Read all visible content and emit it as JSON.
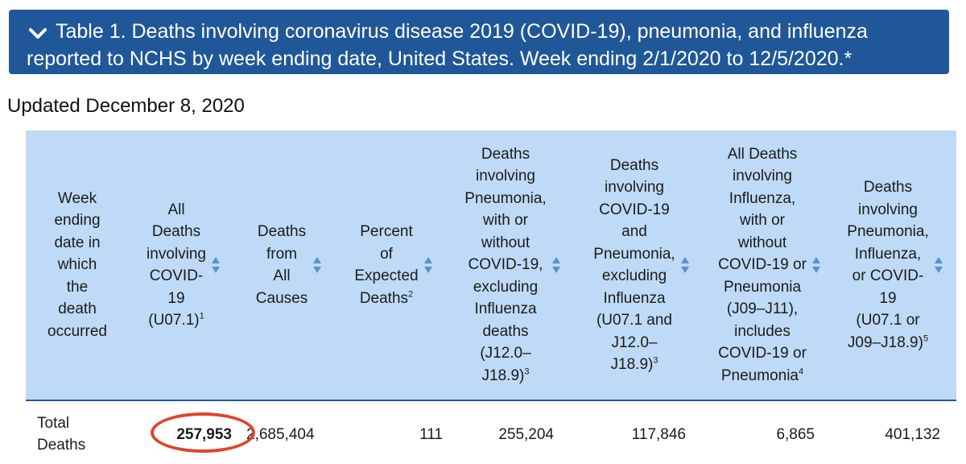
{
  "header": {
    "title": "Table 1. Deaths involving coronavirus disease 2019 (COVID-19), pneumonia, and influenza reported to NCHS by week ending date, United States. Week ending 2/1/2020 to 12/5/2020.*",
    "toggle_icon": "chevron-down-icon"
  },
  "updated": "Updated December 8, 2020",
  "table": {
    "columns": [
      {
        "lines": [
          "Week",
          "ending",
          "date in",
          "which",
          "the",
          "death",
          "occurred"
        ],
        "sup": "",
        "sortable": false
      },
      {
        "lines": [
          "All",
          "Deaths",
          "involving",
          "COVID-",
          "19",
          "(U07.1)"
        ],
        "sup": "1",
        "sortable": true
      },
      {
        "lines": [
          "Deaths",
          "from",
          "All",
          "Causes"
        ],
        "sup": "",
        "sortable": true
      },
      {
        "lines": [
          "Percent",
          "of",
          "Expected",
          "Deaths"
        ],
        "sup": "2",
        "sortable": true
      },
      {
        "lines": [
          "Deaths",
          "involving",
          "Pneumonia,",
          "with or",
          "without",
          "COVID-19,",
          "excluding",
          "Influenza",
          "deaths",
          "(J12.0–",
          "J18.9)"
        ],
        "sup": "3",
        "sortable": true
      },
      {
        "lines": [
          "Deaths",
          "involving",
          "COVID-19",
          "and",
          "Pneumonia,",
          "excluding",
          "Influenza",
          "(U07.1 and",
          "J12.0–",
          "J18.9)"
        ],
        "sup": "3",
        "sortable": true
      },
      {
        "lines": [
          "All Deaths",
          "involving",
          "Influenza,",
          "with or",
          "without",
          "COVID-19 or",
          "Pneumonia",
          "(J09–J11),",
          "includes",
          "COVID-19 or",
          "Pneumonia"
        ],
        "sup": "4",
        "sortable": true
      },
      {
        "lines": [
          "Deaths",
          "involving",
          "Pneumonia,",
          "Influenza,",
          "or COVID-",
          "19",
          "(U07.1 or",
          "J09–J18.9)"
        ],
        "sup": "5",
        "sortable": true
      }
    ],
    "total_row": {
      "label_lines": [
        "Total",
        "Deaths"
      ],
      "covid": "257,953",
      "all_causes": "2,685,404",
      "percent_expected": "111",
      "pneumonia": "255,204",
      "covid_pneumonia": "117,846",
      "influenza": "6,865",
      "pic": "401,132"
    }
  },
  "colors": {
    "title_bg": "#1f5798",
    "header_bg": "#bedaf6",
    "highlight_ring": "#e0442c",
    "sort_arrow": "#5b8fd0"
  }
}
